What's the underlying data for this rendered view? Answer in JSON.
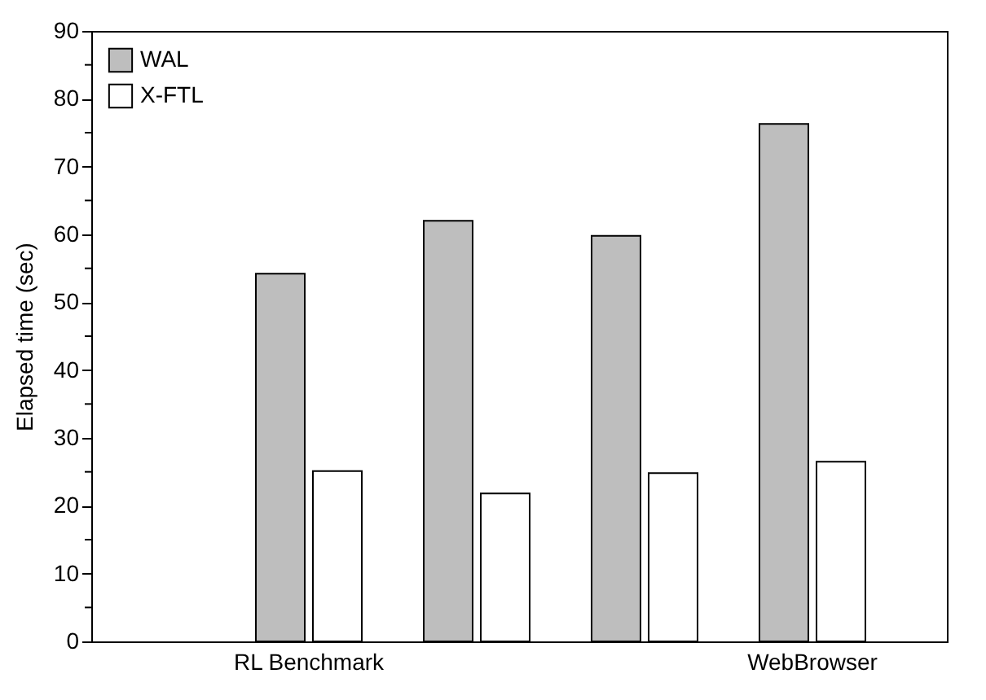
{
  "chart_data": {
    "type": "bar",
    "ylabel": "Elapsed time (sec)",
    "categories": [
      "RL Benchmark",
      null,
      null,
      "WebBrowser"
    ],
    "series": [
      {
        "name": "WAL",
        "color": "#bebebe",
        "values": [
          54.2,
          62,
          59.8,
          76.3
        ]
      },
      {
        "name": "X-FTL",
        "color": "#ffffff",
        "values": [
          25.1,
          21.8,
          24.8,
          26.5
        ]
      }
    ],
    "ylim": [
      0,
      90
    ],
    "yticks": [
      0,
      {
        "value": 5,
        "label": null
      },
      10,
      {
        "value": 15,
        "label": null
      },
      20,
      {
        "value": 25,
        "label": null
      },
      30,
      {
        "value": 35,
        "label": null
      },
      40,
      {
        "value": 45,
        "label": null
      },
      50,
      {
        "value": 55,
        "label": null
      },
      60,
      {
        "value": 65,
        "label": null
      },
      70,
      {
        "value": 75,
        "label": null
      },
      80,
      {
        "value": 85,
        "label": null
      },
      90
    ],
    "legend": "top left"
  }
}
